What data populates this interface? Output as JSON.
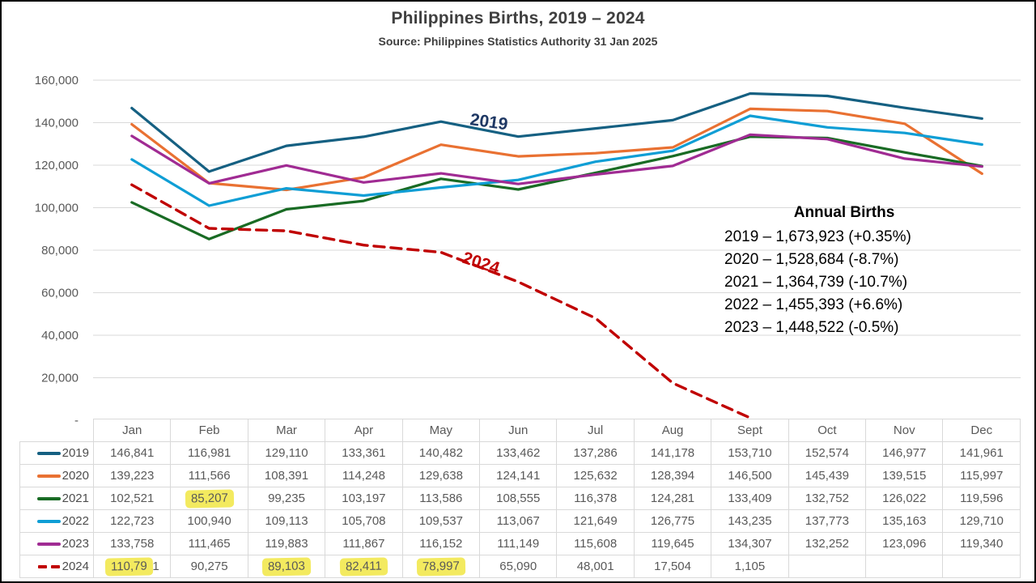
{
  "header": {
    "title": "Philippines Births, 2019 – 2024",
    "subtitle": "Source: Philippines Statistics Authority 31 Jan 2025"
  },
  "chart_data": {
    "type": "line",
    "title": "Philippines Births, 2019 – 2024",
    "subtitle": "Source: Philippines Statistics Authority 31 Jan 2025",
    "categories": [
      "Jan",
      "Feb",
      "Mar",
      "Apr",
      "May",
      "Jun",
      "Jul",
      "Aug",
      "Sept",
      "Oct",
      "Nov",
      "Dec"
    ],
    "series": [
      {
        "name": "2019",
        "color": "#156082",
        "dashed": false,
        "values": [
          146841,
          116981,
          129110,
          133361,
          140482,
          133462,
          137286,
          141178,
          153710,
          152574,
          146977,
          141961
        ]
      },
      {
        "name": "2020",
        "color": "#E97132",
        "dashed": false,
        "values": [
          139223,
          111566,
          108391,
          114248,
          129638,
          124141,
          125632,
          128394,
          146500,
          145439,
          139515,
          115997
        ]
      },
      {
        "name": "2021",
        "color": "#196B24",
        "dashed": false,
        "values": [
          102521,
          85207,
          99235,
          103197,
          113586,
          108555,
          116378,
          124281,
          133409,
          132752,
          126022,
          119596
        ]
      },
      {
        "name": "2022",
        "color": "#0F9ED5",
        "dashed": false,
        "values": [
          122723,
          100940,
          109113,
          105708,
          109537,
          113067,
          121649,
          126775,
          143235,
          137773,
          135163,
          129710
        ]
      },
      {
        "name": "2023",
        "color": "#A02B93",
        "dashed": false,
        "values": [
          133758,
          111465,
          119883,
          111867,
          116152,
          111149,
          115608,
          119645,
          134307,
          132252,
          123096,
          119340
        ]
      },
      {
        "name": "2024",
        "color": "#C00000",
        "dashed": true,
        "values": [
          110791,
          90275,
          89103,
          82411,
          78997,
          65090,
          48001,
          17504,
          1105
        ]
      }
    ],
    "ylim": [
      0,
      160000
    ],
    "ytick_interval": 20000,
    "yticks": [
      {
        "value": 0,
        "label": "-"
      },
      {
        "value": 20000,
        "label": "20,000"
      },
      {
        "value": 40000,
        "label": "40,000"
      },
      {
        "value": 60000,
        "label": "60,000"
      },
      {
        "value": 80000,
        "label": "80,000"
      },
      {
        "value": 100000,
        "label": "100,000"
      },
      {
        "value": 120000,
        "label": "120,000"
      },
      {
        "value": 140000,
        "label": "140,000"
      },
      {
        "value": 160000,
        "label": "160,000"
      }
    ],
    "grid": true,
    "legend_position": "left-column-of-data-table",
    "inline_labels": [
      {
        "series": "2019",
        "text": "2019",
        "color": "#1F3864"
      },
      {
        "series": "2024",
        "text": "2024",
        "color": "#C00000"
      }
    ]
  },
  "annotation": {
    "heading": "Annual Births",
    "lines": [
      "2019 – 1,673,923 (+0.35%)",
      "2020 – 1,528,684 (-8.7%)",
      "2021 – 1,364,739 (-10.7%)",
      "2022 – 1,455,393 (+6.6%)",
      "2023 – 1,448,522 (-0.5%)"
    ]
  },
  "table": {
    "highlights": [
      {
        "series": "2021",
        "col": 1,
        "partial": false
      },
      {
        "series": "2024",
        "col": 0,
        "partial": true
      },
      {
        "series": "2024",
        "col": 2,
        "partial": false
      },
      {
        "series": "2024",
        "col": 3,
        "partial": false
      },
      {
        "series": "2024",
        "col": 4,
        "partial": false
      }
    ]
  },
  "colors": {
    "highlight": "#F3EA5F",
    "grid": "#D9D9D9",
    "axis_text": "#595959",
    "table_border": "#D9D9D9",
    "title_text": "#3F3F3F",
    "annotation_text": "#000000"
  }
}
